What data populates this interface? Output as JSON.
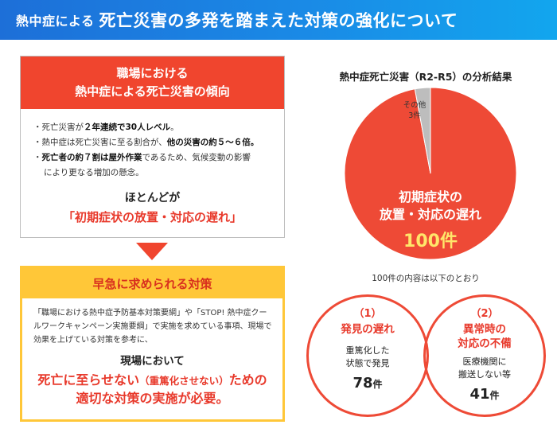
{
  "header": {
    "title_prefix": "熱中症による",
    "title_main": "死亡災害の多発を踏まえた対策の強化について"
  },
  "tendency": {
    "heading_line1": "職場における",
    "heading_line2": "熱中症による死亡災害の傾向",
    "bullet1_a": "死亡災害が",
    "bullet1_b": "２年連続で30人レベル",
    "bullet1_c": "。",
    "bullet2_a": "熱中症は死亡災害に至る割合が、",
    "bullet2_b": "他の災害の約５～６倍。",
    "bullet3_a": "死亡者の約７割は屋外作業",
    "bullet3_b": "であるため、気候変動の影響",
    "bullet3_c": "により更なる増加の懸念。",
    "conclusion_line1": "ほとんどが",
    "conclusion_line2": "「初期症状の放置・対応の遅れ」"
  },
  "measures": {
    "heading": "早急に求められる対策",
    "body": "「職場における熱中症予防基本対策要綱」や「STOP! 熱中症クールワークキャンペーン実施要綱」で実施を求めている事項、現場で効果を上げている対策を参考に、",
    "conclusion_line1": "現場において",
    "conclusion_red1": "死亡に至らせない",
    "conclusion_small": "（重篤化させない）",
    "conclusion_red2": "ための",
    "conclusion_line3": "適切な対策の実施が必要。"
  },
  "analysis": {
    "title": "熱中症死亡災害（R2-R5）の分析結果",
    "main_label_line1": "初期症状の",
    "main_label_line2": "放置・対応の遅れ",
    "main_count": "100件",
    "other_label_line1": "その他",
    "other_label_line2": "3件",
    "breakdown_note": "100件の内容は以下のとおり"
  },
  "chart_data": {
    "type": "pie",
    "slices": [
      {
        "name": "初期症状の放置・対応の遅れ",
        "value": 100,
        "color": "#ee4a36"
      },
      {
        "name": "その他",
        "value": 3,
        "color": "#bdbdbd"
      }
    ]
  },
  "circles": [
    {
      "num": "（1）",
      "title_line1": "発見の遅れ",
      "title_line2": "",
      "desc_line1": "重篤化した",
      "desc_line2": "状態で発見",
      "count": "78",
      "unit": "件"
    },
    {
      "num": "（2）",
      "title_line1": "異常時の",
      "title_line2": "対応の不備",
      "desc_line1": "医療機関に",
      "desc_line2": "搬送しない等",
      "count": "41",
      "unit": "件"
    }
  ],
  "colors": {
    "accent_red": "#ee4a36",
    "accent_yellow": "#ffc738",
    "header_blue": "#1d6fd8"
  }
}
